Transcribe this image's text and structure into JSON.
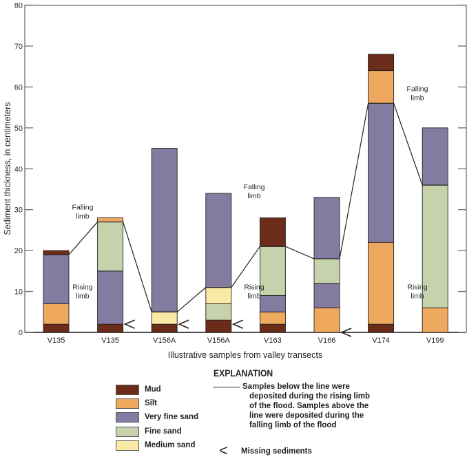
{
  "chart_data": {
    "type": "bar",
    "stacked": true,
    "title": "",
    "xlabel": "Illustrative samples from valley transects",
    "ylabel": "Sediment thickness, in centimeters",
    "ylim": [
      0,
      80
    ],
    "yticks": [
      0,
      10,
      20,
      30,
      40,
      50,
      60,
      70,
      80
    ],
    "categories": [
      "V135",
      "V135",
      "V156A",
      "V156A",
      "V163",
      "V166",
      "V174",
      "V199"
    ],
    "layer_colors": {
      "Mud": "#6B2D1A",
      "Silt": "#EEA95E",
      "Very fine sand": "#837BA0",
      "Fine sand": "#C5D2AC",
      "Medium sand": "#FBE9A6"
    },
    "bars": [
      {
        "sample": "V135",
        "layers": [
          {
            "type": "Mud",
            "from": 0,
            "to": 2
          },
          {
            "type": "Silt",
            "from": 2,
            "to": 7
          },
          {
            "type": "Very fine sand",
            "from": 7,
            "to": 19
          },
          {
            "type": "Mud",
            "from": 19,
            "to": 20
          }
        ],
        "flood_line": 19,
        "missing": false
      },
      {
        "sample": "V135",
        "layers": [
          {
            "type": "Mud",
            "from": 0,
            "to": 2
          },
          {
            "type": "Very fine sand",
            "from": 2,
            "to": 15
          },
          {
            "type": "Fine sand",
            "from": 15,
            "to": 27
          },
          {
            "type": "Silt",
            "from": 27,
            "to": 28
          }
        ],
        "flood_line": 27,
        "missing": true
      },
      {
        "sample": "V156A",
        "layers": [
          {
            "type": "Mud",
            "from": 0,
            "to": 2
          },
          {
            "type": "Medium sand",
            "from": 2,
            "to": 5
          },
          {
            "type": "Very fine sand",
            "from": 5,
            "to": 45
          }
        ],
        "flood_line": 5,
        "missing": true
      },
      {
        "sample": "V156A",
        "layers": [
          {
            "type": "Mud",
            "from": 0,
            "to": 3
          },
          {
            "type": "Fine sand",
            "from": 3,
            "to": 7
          },
          {
            "type": "Medium sand",
            "from": 7,
            "to": 11
          },
          {
            "type": "Very fine sand",
            "from": 11,
            "to": 34
          }
        ],
        "flood_line": 11,
        "missing": true
      },
      {
        "sample": "V163",
        "layers": [
          {
            "type": "Mud",
            "from": 0,
            "to": 2
          },
          {
            "type": "Silt",
            "from": 2,
            "to": 5
          },
          {
            "type": "Very fine sand",
            "from": 5,
            "to": 9
          },
          {
            "type": "Fine sand",
            "from": 9,
            "to": 21
          },
          {
            "type": "Mud",
            "from": 21,
            "to": 28
          }
        ],
        "flood_line": 21,
        "missing": false
      },
      {
        "sample": "V166",
        "layers": [
          {
            "type": "Silt",
            "from": 0,
            "to": 6
          },
          {
            "type": "Very fine sand",
            "from": 6,
            "to": 12
          },
          {
            "type": "Fine sand",
            "from": 12,
            "to": 18
          },
          {
            "type": "Very fine sand",
            "from": 18,
            "to": 33
          }
        ],
        "flood_line": 18,
        "missing": true
      },
      {
        "sample": "V174",
        "layers": [
          {
            "type": "Mud",
            "from": 0,
            "to": 2
          },
          {
            "type": "Silt",
            "from": 2,
            "to": 22
          },
          {
            "type": "Very fine sand",
            "from": 22,
            "to": 56
          },
          {
            "type": "Silt",
            "from": 56,
            "to": 64
          },
          {
            "type": "Mud",
            "from": 64,
            "to": 68
          }
        ],
        "flood_line": 56,
        "missing": false
      },
      {
        "sample": "V199",
        "layers": [
          {
            "type": "Silt",
            "from": 0,
            "to": 6
          },
          {
            "type": "Fine sand",
            "from": 6,
            "to": 36
          },
          {
            "type": "Very fine sand",
            "from": 36,
            "to": 50
          }
        ],
        "flood_line": 36,
        "missing": false
      }
    ],
    "annotations": [
      {
        "text": [
          "Falling",
          "limb"
        ],
        "near_sample_index": 0,
        "at_value": 30
      },
      {
        "text": [
          "Rising",
          "limb"
        ],
        "near_sample_index": 0,
        "at_value": 9
      },
      {
        "text": [
          "Falling",
          "limb"
        ],
        "near_sample_index": 3,
        "at_value": 34
      },
      {
        "text": [
          "Rising",
          "limb"
        ],
        "near_sample_index": 3,
        "at_value": 9
      },
      {
        "text": [
          "Falling",
          "limb"
        ],
        "near_sample_index": 6,
        "at_value": 57
      },
      {
        "text": [
          "Rising",
          "limb"
        ],
        "near_sample_index": 6,
        "at_value": 9
      }
    ]
  },
  "legend": {
    "title": "EXPLANATION",
    "items": [
      {
        "label": "Mud",
        "color": "#6B2D1A"
      },
      {
        "label": "Silt",
        "color": "#EEA95E"
      },
      {
        "label": "Very fine sand",
        "color": "#837BA0"
      },
      {
        "label": "Fine sand",
        "color": "#C5D2AC"
      },
      {
        "label": "Medium sand",
        "color": "#FBE9A6"
      }
    ],
    "line_description": [
      "Samples below the line were",
      "deposited during the rising limb",
      "of the flood.  Samples above the",
      "line were deposited during the",
      "falling limb of the flood"
    ],
    "missing_symbol": "<",
    "missing_label": "Missing sediments"
  }
}
